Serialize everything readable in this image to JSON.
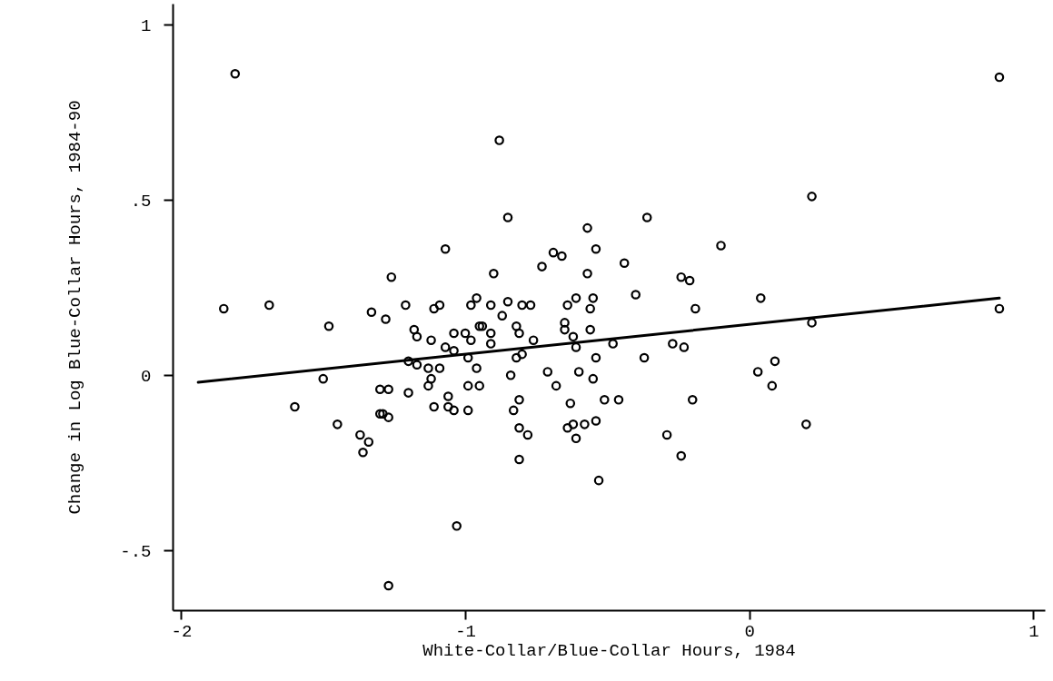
{
  "chart_data": {
    "type": "scatter",
    "xlabel": "White-Collar/Blue-Collar Hours, 1984",
    "ylabel": "Change in Log Blue-Collar Hours, 1984-90",
    "xlim": [
      -2.03,
      1.04
    ],
    "ylim": [
      -0.67,
      1.06
    ],
    "xticks": [
      -2,
      -1,
      0,
      1
    ],
    "yticks": [
      {
        "value": -0.5,
        "label": "-.5"
      },
      0,
      {
        "value": 0.5,
        "label": ".5"
      },
      1
    ],
    "series": [
      {
        "marker": "circle",
        "color": "#000000",
        "x": [
          -1.85,
          -1.81,
          -1.69,
          -1.6,
          -1.07,
          -1.26,
          -1.48,
          -1.33,
          -1.28,
          -1.21,
          -1.11,
          -1.09,
          -0.96,
          -0.98,
          -0.95,
          -1.18,
          -1.17,
          -1.12,
          -1.04,
          -1.0,
          -0.98,
          -1.07,
          -1.04,
          -0.99,
          -1.2,
          -1.17,
          -1.13,
          -1.09,
          -0.96,
          -1.12,
          -1.5,
          -1.13,
          -0.99,
          -0.95,
          -1.3,
          -1.27,
          -1.2,
          -1.06,
          -1.11,
          -0.57,
          -0.54,
          -0.69,
          -0.66,
          -0.73,
          -0.44,
          -0.9,
          -0.57,
          -0.4,
          -0.85,
          -0.8,
          -0.77,
          -0.91,
          -0.61,
          -0.55,
          -0.64,
          -0.56,
          -0.87,
          -0.82,
          -0.81,
          -0.94,
          -0.91,
          -0.65,
          -0.65,
          -0.56,
          -0.62,
          -0.91,
          -0.76,
          -0.48,
          -0.61,
          -0.8,
          -0.82,
          -0.54,
          -0.37,
          -0.84,
          -0.71,
          -0.6,
          -0.68,
          -0.55,
          -0.81,
          -0.63,
          -0.51,
          -0.46,
          -0.1,
          -0.24,
          -0.21,
          0.04,
          -0.19,
          0.22,
          -0.27,
          -0.23,
          0.09,
          0.03,
          0.08,
          -0.2,
          -1.06,
          -1.04,
          -0.99,
          -1.3,
          -1.29,
          -1.27,
          -1.45,
          -1.37,
          -1.34,
          -1.36,
          -1.03,
          -1.27,
          -0.83,
          -0.81,
          -0.78,
          -0.64,
          -0.62,
          -0.58,
          -0.54,
          -0.61,
          -0.81,
          -0.53,
          0.2,
          -0.29,
          -0.24,
          -0.88,
          -0.85,
          -0.36,
          0.22,
          0.88,
          0.88
        ],
        "values": [
          0.19,
          0.86,
          0.2,
          -0.09,
          0.36,
          0.28,
          0.14,
          0.18,
          0.16,
          0.2,
          0.19,
          0.2,
          0.22,
          0.2,
          0.14,
          0.13,
          0.11,
          0.1,
          0.12,
          0.12,
          0.1,
          0.08,
          0.07,
          0.05,
          0.04,
          0.03,
          0.02,
          0.02,
          0.02,
          -0.01,
          -0.01,
          -0.03,
          -0.03,
          -0.03,
          -0.04,
          -0.04,
          -0.05,
          -0.06,
          -0.09,
          0.42,
          0.36,
          0.35,
          0.34,
          0.31,
          0.32,
          0.29,
          0.29,
          0.23,
          0.21,
          0.2,
          0.2,
          0.2,
          0.22,
          0.22,
          0.2,
          0.19,
          0.17,
          0.14,
          0.12,
          0.14,
          0.12,
          0.15,
          0.13,
          0.13,
          0.11,
          0.09,
          0.1,
          0.09,
          0.08,
          0.06,
          0.05,
          0.05,
          0.05,
          0.0,
          0.01,
          0.01,
          -0.03,
          -0.01,
          -0.07,
          -0.08,
          -0.07,
          -0.07,
          0.37,
          0.28,
          0.27,
          0.22,
          0.19,
          0.15,
          0.09,
          0.08,
          0.04,
          0.01,
          -0.03,
          -0.07,
          -0.09,
          -0.1,
          -0.1,
          -0.11,
          -0.11,
          -0.12,
          -0.14,
          -0.17,
          -0.19,
          -0.22,
          -0.43,
          -0.6,
          -0.1,
          -0.15,
          -0.17,
          -0.15,
          -0.14,
          -0.14,
          -0.13,
          -0.18,
          -0.24,
          -0.3,
          -0.14,
          -0.17,
          -0.23,
          0.67,
          0.45,
          0.45,
          0.51,
          0.19,
          0.85
        ]
      },
      {
        "type": "line",
        "color": "#000000",
        "x": [
          -1.94,
          0.88
        ],
        "values": [
          -0.02,
          0.22
        ]
      }
    ]
  }
}
